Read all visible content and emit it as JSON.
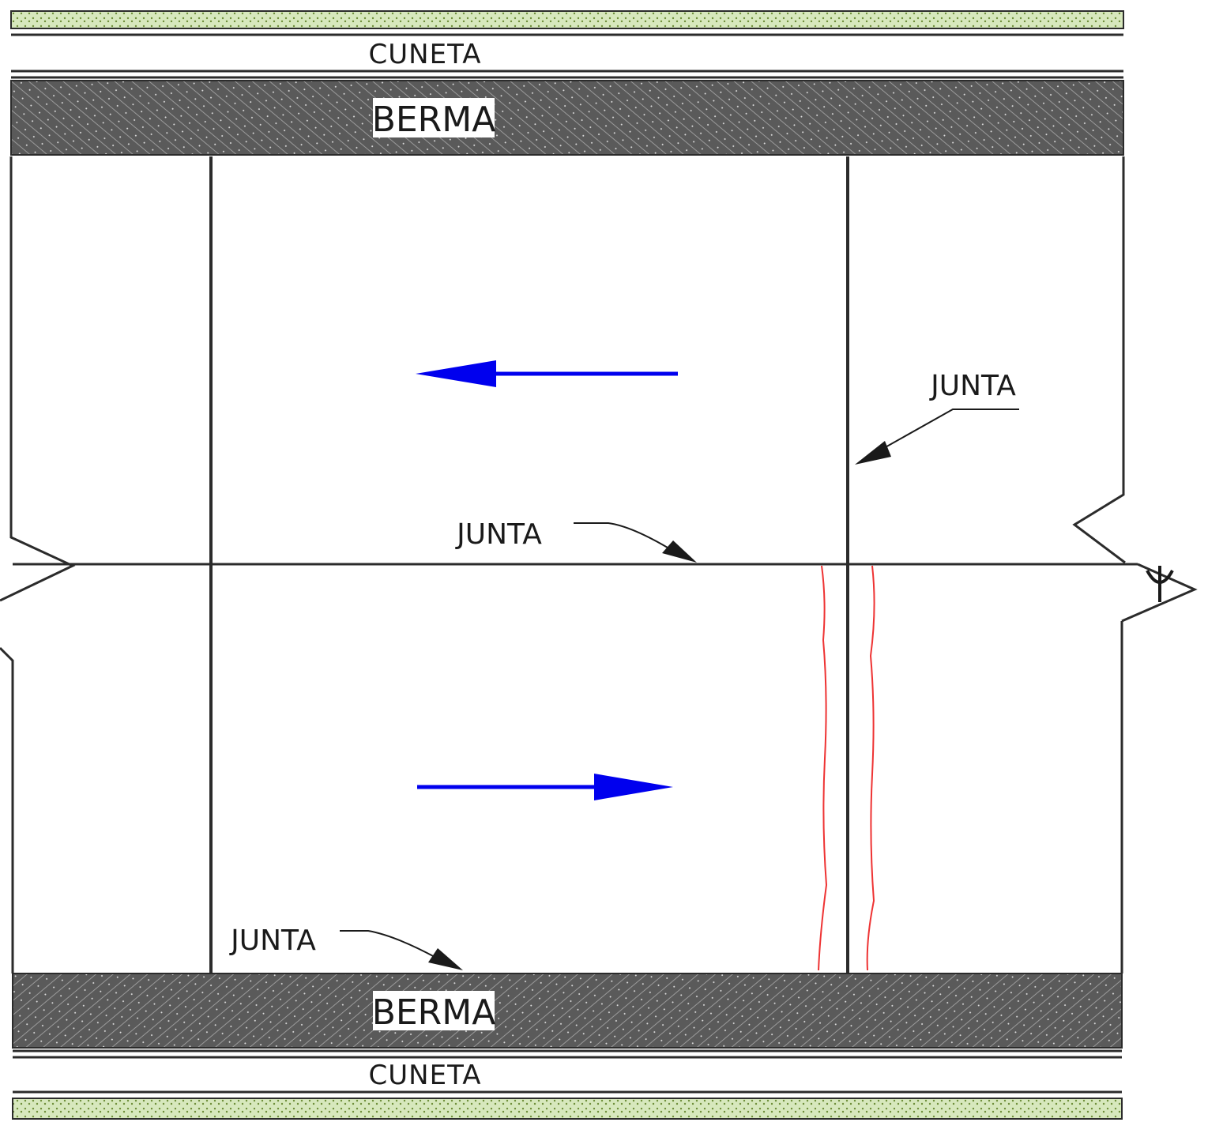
{
  "labels": {
    "cuneta_top": "CUNETA",
    "berma_top": "BERMA",
    "junta_right": "JUNTA",
    "junta_center": "JUNTA",
    "junta_bottom": "JUNTA",
    "berma_bottom": "BERMA",
    "cuneta_bottom": "CUNETA",
    "centerline_symbol": "℄"
  },
  "traffic": {
    "upper_lane_direction": "left",
    "lower_lane_direction": "right"
  },
  "colors": {
    "line": "#2b2b2b",
    "berma_fill": "#555555",
    "grass_fill": "#cfe3b0",
    "traffic_arrow": "#0000ee",
    "crack": "#ee3333"
  },
  "icons": {
    "traffic_arrow_upper": "arrow-left-icon",
    "traffic_arrow_lower": "arrow-right-icon",
    "leader_arrow": "leader-arrow-icon",
    "centerline_symbol": "centerline-icon"
  }
}
